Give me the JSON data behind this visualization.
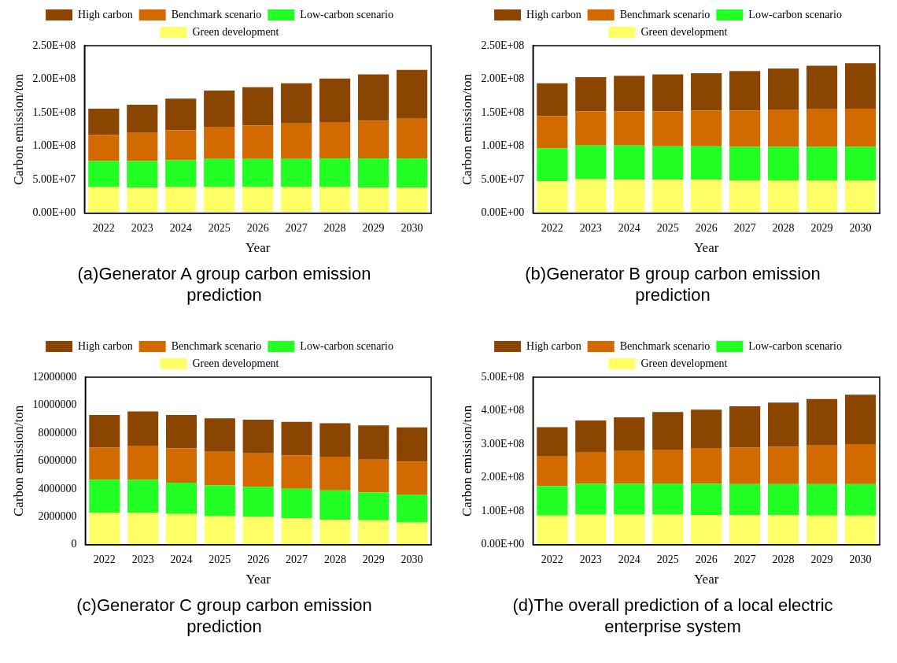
{
  "chart_data": [
    {
      "type": "bar",
      "stacked": true,
      "xlabel": "Year",
      "ylabel": "Carbon emission/ton",
      "legend": "top",
      "grid": false,
      "categories": [
        "2022",
        "2023",
        "2024",
        "2025",
        "2026",
        "2027",
        "2028",
        "2029",
        "2030"
      ],
      "ylim": [
        0,
        250000000
      ],
      "yticks": [
        {
          "value": 0,
          "label": "0.00E+00"
        },
        {
          "value": 50000000,
          "label": "5.00E+07"
        },
        {
          "value": 100000000,
          "label": "1.00E+08"
        },
        {
          "value": 150000000,
          "label": "1.50E+08"
        },
        {
          "value": 200000000,
          "label": "2.00E+08"
        },
        {
          "value": 250000000,
          "label": "2.50E+08"
        }
      ],
      "series": [
        {
          "name": "Green development",
          "color": "#ffff66",
          "values": [
            39000000,
            38000000,
            39000000,
            39000000,
            39000000,
            39000000,
            39000000,
            38000000,
            38000000
          ]
        },
        {
          "name": "Low-carbon scenario",
          "color": "#22ff22",
          "values": [
            39000000,
            40000000,
            40000000,
            42000000,
            42000000,
            42000000,
            43000000,
            44000000,
            44000000
          ]
        },
        {
          "name": "Benchmark scenario",
          "color": "#d26a00",
          "values": [
            39000000,
            42000000,
            45000000,
            48000000,
            50000000,
            53000000,
            54000000,
            56000000,
            59000000
          ]
        },
        {
          "name": "High carbon",
          "color": "#8a4500",
          "values": [
            39000000,
            42000000,
            47000000,
            54000000,
            57000000,
            60000000,
            65000000,
            69000000,
            73000000
          ]
        }
      ],
      "annotations": [
        "(a)Generator A group carbon emission prediction"
      ]
    },
    {
      "type": "bar",
      "stacked": true,
      "xlabel": "Year",
      "ylabel": "Carbon emission/ton",
      "legend": "top",
      "grid": false,
      "categories": [
        "2022",
        "2023",
        "2024",
        "2025",
        "2026",
        "2027",
        "2028",
        "2029",
        "2030"
      ],
      "ylim": [
        0,
        250000000
      ],
      "yticks": [
        {
          "value": 0,
          "label": "0.00E+00"
        },
        {
          "value": 50000000,
          "label": "5.00E+07"
        },
        {
          "value": 100000000,
          "label": "1.00E+08"
        },
        {
          "value": 150000000,
          "label": "1.50E+08"
        },
        {
          "value": 200000000,
          "label": "2.00E+08"
        },
        {
          "value": 250000000,
          "label": "2.50E+08"
        }
      ],
      "series": [
        {
          "name": "Green development",
          "color": "#ffff66",
          "values": [
            48000000,
            51000000,
            50000000,
            50000000,
            50000000,
            49000000,
            49000000,
            49000000,
            49000000
          ]
        },
        {
          "name": "Low-carbon scenario",
          "color": "#22ff22",
          "values": [
            49000000,
            50000000,
            51000000,
            50000000,
            50000000,
            50000000,
            50000000,
            50000000,
            50000000
          ]
        },
        {
          "name": "Benchmark scenario",
          "color": "#d26a00",
          "values": [
            48000000,
            51000000,
            51000000,
            52000000,
            53000000,
            54000000,
            55000000,
            56000000,
            57000000
          ]
        },
        {
          "name": "High carbon",
          "color": "#8a4500",
          "values": [
            49000000,
            51000000,
            53000000,
            55000000,
            56000000,
            59000000,
            62000000,
            65000000,
            68000000
          ]
        }
      ],
      "annotations": [
        "(b)Generator B group carbon emission prediction"
      ]
    },
    {
      "type": "bar",
      "stacked": true,
      "xlabel": "Year",
      "ylabel": "Carbon emission/ton",
      "legend": "top",
      "grid": false,
      "categories": [
        "2022",
        "2023",
        "2024",
        "2025",
        "2026",
        "2027",
        "2028",
        "2029",
        "2030"
      ],
      "ylim": [
        0,
        12000000
      ],
      "yticks": [
        0,
        2000000,
        4000000,
        6000000,
        8000000,
        10000000,
        12000000
      ],
      "series": [
        {
          "name": "Green development",
          "color": "#ffff66",
          "values": [
            2300000,
            2300000,
            2200000,
            2050000,
            2000000,
            1900000,
            1800000,
            1750000,
            1600000
          ]
        },
        {
          "name": "Low-carbon scenario",
          "color": "#22ff22",
          "values": [
            2350000,
            2350000,
            2250000,
            2200000,
            2150000,
            2100000,
            2100000,
            2000000,
            2000000
          ]
        },
        {
          "name": "Benchmark scenario",
          "color": "#d26a00",
          "values": [
            2300000,
            2450000,
            2450000,
            2400000,
            2400000,
            2400000,
            2400000,
            2350000,
            2350000
          ]
        },
        {
          "name": "High carbon",
          "color": "#8a4500",
          "values": [
            2350000,
            2450000,
            2400000,
            2400000,
            2400000,
            2400000,
            2400000,
            2450000,
            2450000
          ]
        }
      ],
      "annotations": [
        "(c)Generator C group carbon emission prediction"
      ]
    },
    {
      "type": "bar",
      "stacked": true,
      "xlabel": "Year",
      "ylabel": "Carbon emission/ton",
      "legend": "top",
      "grid": false,
      "categories": [
        "2022",
        "2023",
        "2024",
        "2025",
        "2026",
        "2027",
        "2028",
        "2029",
        "2030"
      ],
      "ylim": [
        0,
        500000000
      ],
      "yticks": [
        {
          "value": 0,
          "label": "0.00E+00"
        },
        {
          "value": 100000000,
          "label": "1.00E+08"
        },
        {
          "value": 200000000,
          "label": "2.00E+08"
        },
        {
          "value": 300000000,
          "label": "3.00E+08"
        },
        {
          "value": 400000000,
          "label": "4.00E+08"
        },
        {
          "value": 500000000,
          "label": "5.00E+08"
        }
      ],
      "series": [
        {
          "name": "Green development",
          "color": "#ffff66",
          "values": [
            87000000,
            90000000,
            90000000,
            90000000,
            89000000,
            88000000,
            88000000,
            87000000,
            87000000
          ]
        },
        {
          "name": "Low-carbon scenario",
          "color": "#22ff22",
          "values": [
            88000000,
            92000000,
            92000000,
            93000000,
            93000000,
            93000000,
            93000000,
            94000000,
            94000000
          ]
        },
        {
          "name": "Benchmark scenario",
          "color": "#d26a00",
          "values": [
            88000000,
            93000000,
            98000000,
            101000000,
            105000000,
            109000000,
            111000000,
            115000000,
            119000000
          ]
        },
        {
          "name": "High carbon",
          "color": "#8a4500",
          "values": [
            88000000,
            96000000,
            100000000,
            112000000,
            116000000,
            123000000,
            132000000,
            139000000,
            148000000
          ]
        }
      ],
      "annotations": [
        "(d)The overall prediction of a local electric enterprise system"
      ]
    }
  ]
}
